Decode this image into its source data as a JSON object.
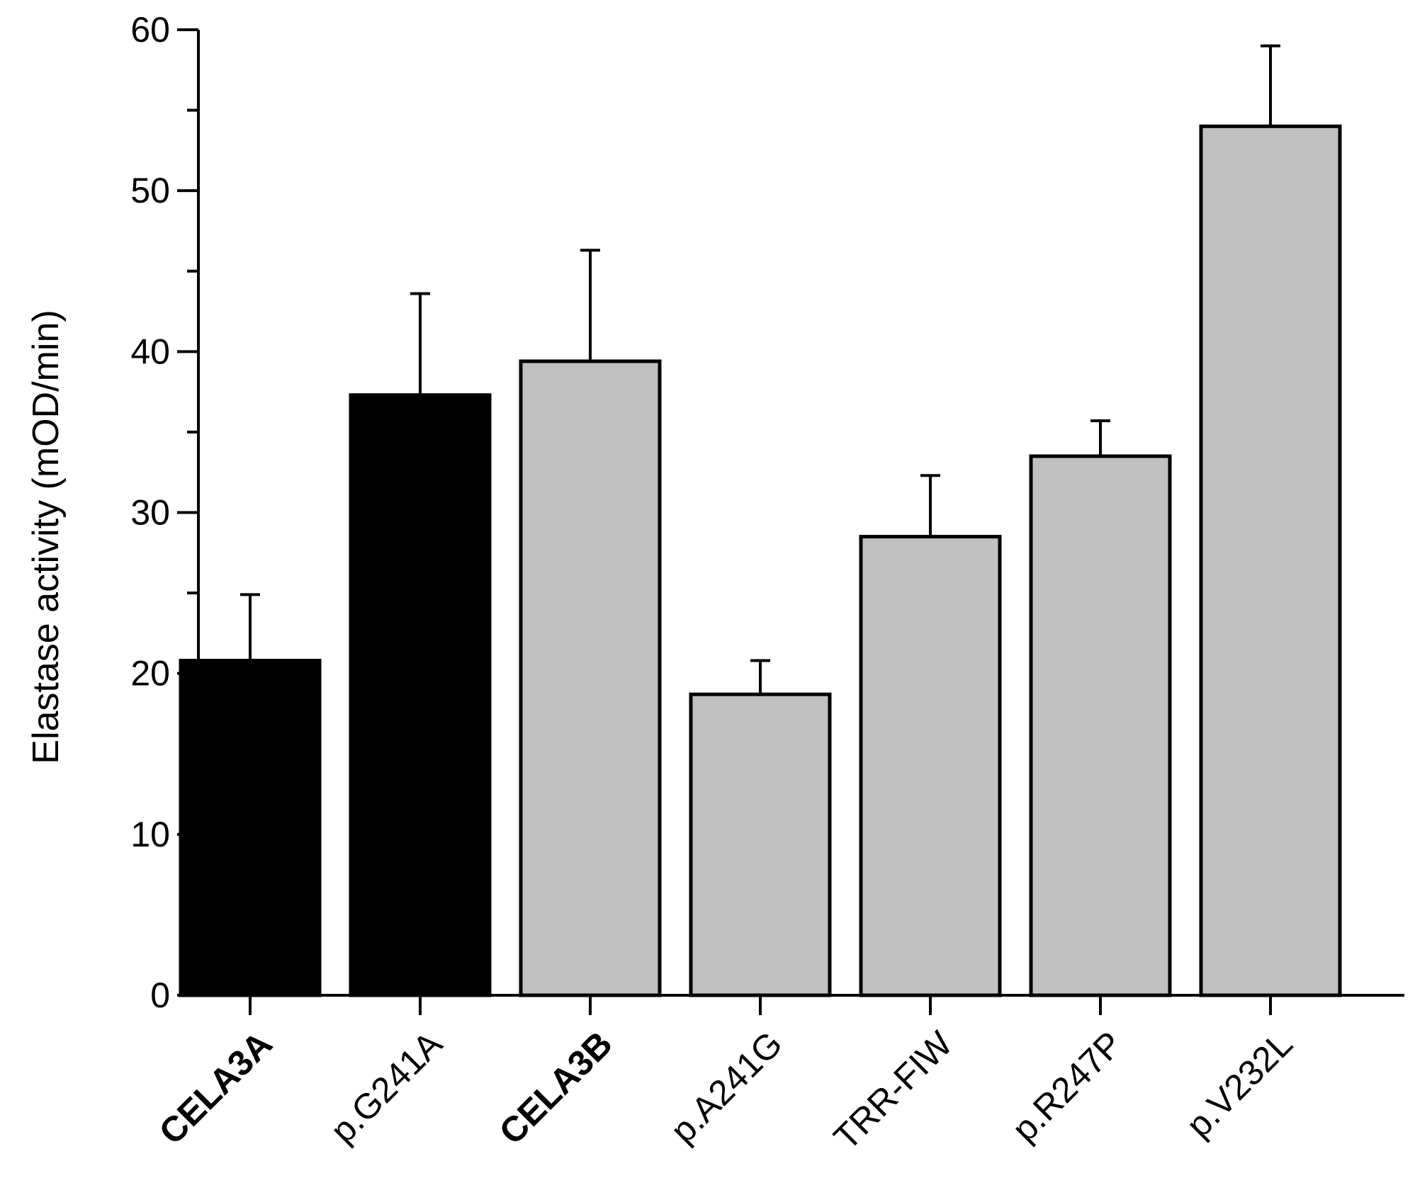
{
  "chart_data": {
    "type": "bar",
    "title": "",
    "xlabel": "",
    "ylabel": "Elastase activity (mOD/min)",
    "ylim": [
      0,
      60
    ],
    "yticks": [
      0,
      10,
      20,
      30,
      40,
      50,
      60
    ],
    "grid": false,
    "legend": "none",
    "categories": [
      "CELA3A",
      "p.G241A",
      "CELA3B",
      "p.A241G",
      "TRR-FIW",
      "p.R247P",
      "p.V232L"
    ],
    "bold_categories": [
      "CELA3A",
      "CELA3B"
    ],
    "values": [
      20.8,
      37.3,
      39.4,
      18.7,
      28.5,
      33.5,
      54.0
    ],
    "errors": [
      4.1,
      6.3,
      6.9,
      2.1,
      3.8,
      2.2,
      5.0
    ],
    "bar_colors": [
      "#000000",
      "#000000",
      "#c0c0c0",
      "#c0c0c0",
      "#c0c0c0",
      "#c0c0c0",
      "#c0c0c0"
    ]
  }
}
